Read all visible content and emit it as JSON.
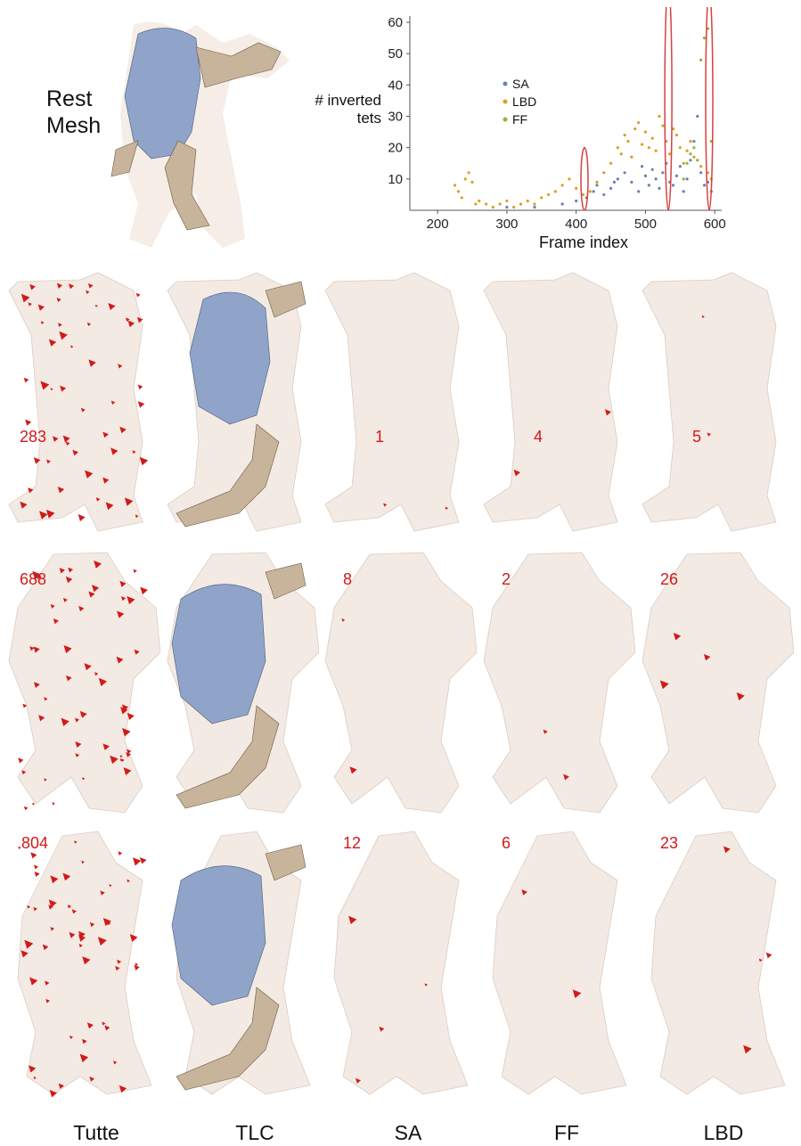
{
  "rest_label": [
    "Rest",
    "Mesh"
  ],
  "column_labels": [
    "Tutte",
    "TLC",
    "SA",
    "FF",
    "LBD"
  ],
  "rows": [
    {
      "counts": [
        "283",
        "",
        "1",
        "4",
        "5"
      ]
    },
    {
      "counts": [
        "688",
        "",
        "8",
        "2",
        "26"
      ]
    },
    {
      "counts": [
        "804",
        "",
        "12",
        "6",
        "23"
      ]
    }
  ],
  "colors": {
    "SA": "#6a7fb5",
    "LBD": "#d9a020",
    "FF": "#8ab832",
    "inverted": "#d11a1a",
    "mesh_blue": "#8fa4c8",
    "mesh_tan": "#c8b49a",
    "ghost": "#f2e8e0",
    "highlight": "#d84040"
  },
  "chart_data": {
    "type": "scatter",
    "xlabel": "Frame index",
    "ylabel": [
      "# inverted",
      "tets"
    ],
    "xlim": [
      160,
      610
    ],
    "ylim": [
      0,
      62
    ],
    "xticks": [
      200,
      300,
      400,
      500,
      600
    ],
    "yticks": [
      10,
      20,
      30,
      40,
      50,
      60
    ],
    "legend": [
      "SA",
      "LBD",
      "FF"
    ],
    "legend_position": "upper-left-center",
    "highlighted_frames": [
      412,
      533,
      592
    ],
    "series": [
      {
        "name": "SA",
        "x": [
          300,
          340,
          380,
          400,
          415,
          425,
          430,
          440,
          450,
          455,
          460,
          470,
          480,
          490,
          495,
          500,
          505,
          510,
          515,
          520,
          525,
          530,
          535,
          540,
          545,
          550,
          555,
          560,
          565,
          570,
          575,
          580,
          585,
          590,
          595
        ],
        "y": [
          1,
          1,
          2,
          3,
          4,
          6,
          8,
          5,
          7,
          9,
          10,
          12,
          9,
          6,
          14,
          11,
          8,
          13,
          10,
          7,
          12,
          15,
          9,
          8,
          11,
          14,
          6,
          10,
          16,
          22,
          30,
          12,
          8,
          9,
          6
        ]
      },
      {
        "name": "LBD",
        "x": [
          225,
          230,
          235,
          240,
          245,
          250,
          255,
          260,
          270,
          280,
          290,
          300,
          310,
          320,
          330,
          340,
          350,
          360,
          370,
          380,
          390,
          400,
          410,
          420,
          430,
          440,
          450,
          460,
          465,
          470,
          475,
          480,
          485,
          490,
          495,
          500,
          505,
          510,
          515,
          520,
          525,
          530,
          535,
          540,
          545,
          550,
          555,
          560,
          565,
          570,
          580,
          590,
          595
        ],
        "y": [
          8,
          6,
          4,
          10,
          12,
          9,
          2,
          3,
          2,
          1,
          2,
          3,
          1,
          2,
          3,
          2,
          4,
          5,
          6,
          8,
          10,
          7,
          5,
          6,
          9,
          12,
          15,
          20,
          18,
          24,
          22,
          17,
          26,
          28,
          21,
          25,
          20,
          23,
          19,
          30,
          27,
          22,
          18,
          26,
          24,
          20,
          15,
          19,
          22,
          17,
          14,
          12,
          10
        ]
      },
      {
        "name": "FF",
        "x": [
          555,
          560,
          565,
          570,
          575,
          580,
          585,
          590,
          595
        ],
        "y": [
          10,
          15,
          18,
          20,
          16,
          48,
          55,
          58,
          22
        ]
      }
    ]
  }
}
